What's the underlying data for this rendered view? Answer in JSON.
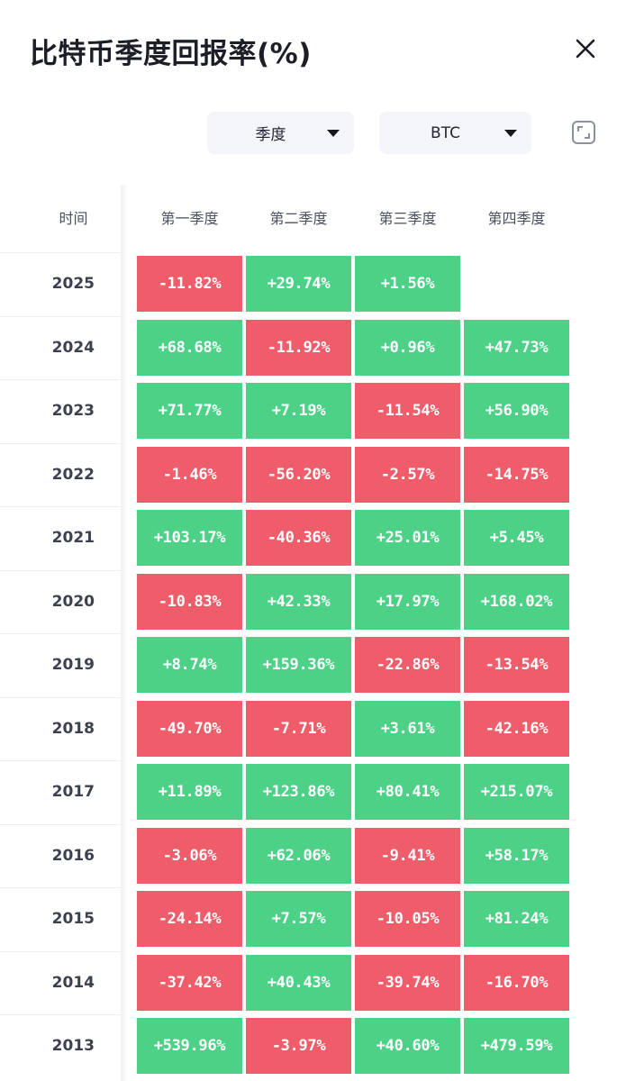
{
  "header": {
    "title": "比特币季度回报率(%)"
  },
  "filters": {
    "period_label": "季度",
    "coin_label": "BTC"
  },
  "icons": {
    "close": "close-icon",
    "expand": "expand-icon",
    "caret": "caret-down-icon"
  },
  "colors": {
    "positive": "#4cd187",
    "negative": "#f05d6a"
  },
  "table": {
    "time_header": "时间",
    "columns": [
      "第一季度",
      "第二季度",
      "第三季度",
      "第四季度"
    ],
    "rows": [
      {
        "year": "2025",
        "values": [
          "-11.82%",
          "+29.74%",
          "+1.56%",
          ""
        ]
      },
      {
        "year": "2024",
        "values": [
          "+68.68%",
          "-11.92%",
          "+0.96%",
          "+47.73%"
        ]
      },
      {
        "year": "2023",
        "values": [
          "+71.77%",
          "+7.19%",
          "-11.54%",
          "+56.90%"
        ]
      },
      {
        "year": "2022",
        "values": [
          "-1.46%",
          "-56.20%",
          "-2.57%",
          "-14.75%"
        ]
      },
      {
        "year": "2021",
        "values": [
          "+103.17%",
          "-40.36%",
          "+25.01%",
          "+5.45%"
        ]
      },
      {
        "year": "2020",
        "values": [
          "-10.83%",
          "+42.33%",
          "+17.97%",
          "+168.02%"
        ]
      },
      {
        "year": "2019",
        "values": [
          "+8.74%",
          "+159.36%",
          "-22.86%",
          "-13.54%"
        ]
      },
      {
        "year": "2018",
        "values": [
          "-49.70%",
          "-7.71%",
          "+3.61%",
          "-42.16%"
        ]
      },
      {
        "year": "2017",
        "values": [
          "+11.89%",
          "+123.86%",
          "+80.41%",
          "+215.07%"
        ]
      },
      {
        "year": "2016",
        "values": [
          "-3.06%",
          "+62.06%",
          "-9.41%",
          "+58.17%"
        ]
      },
      {
        "year": "2015",
        "values": [
          "-24.14%",
          "+7.57%",
          "-10.05%",
          "+81.24%"
        ]
      },
      {
        "year": "2014",
        "values": [
          "-37.42%",
          "+40.43%",
          "-39.74%",
          "-16.70%"
        ]
      },
      {
        "year": "2013",
        "values": [
          "+539.96%",
          "-3.97%",
          "+40.60%",
          "+479.59%"
        ]
      }
    ]
  }
}
